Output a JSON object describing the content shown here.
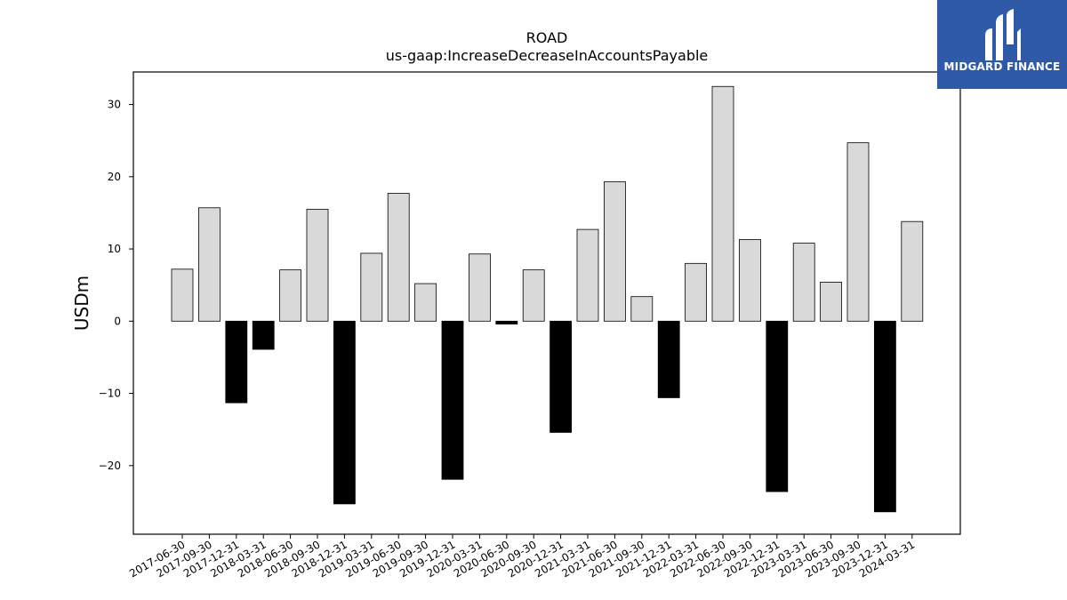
{
  "chart_data": {
    "type": "bar",
    "title": "ROAD",
    "subtitle": "us-gaap:IncreaseDecreaseInAccountsPayable",
    "xlabel": "",
    "ylabel": "USDm",
    "ylim": [
      -29.5,
      34.5
    ],
    "yticks": [
      -20,
      -10,
      0,
      10,
      20,
      30
    ],
    "grid": false,
    "categories": [
      "2017-06-30",
      "2017-09-30",
      "2017-12-31",
      "2018-03-31",
      "2018-06-30",
      "2018-09-30",
      "2018-12-31",
      "2019-03-31",
      "2019-06-30",
      "2019-09-30",
      "2019-12-31",
      "2020-03-31",
      "2020-06-30",
      "2020-09-30",
      "2020-12-31",
      "2021-03-31",
      "2021-06-30",
      "2021-09-30",
      "2021-12-31",
      "2022-03-31",
      "2022-06-30",
      "2022-09-30",
      "2022-12-31",
      "2023-03-31",
      "2023-06-30",
      "2023-09-30",
      "2023-12-31",
      "2024-03-31"
    ],
    "values": [
      7.2,
      15.7,
      -11.3,
      -3.9,
      7.1,
      15.5,
      -25.3,
      9.4,
      17.7,
      5.2,
      -21.9,
      9.3,
      -0.4,
      7.1,
      -15.4,
      12.7,
      19.3,
      3.4,
      -10.6,
      8.0,
      32.5,
      11.3,
      -23.6,
      10.8,
      5.4,
      24.7,
      -26.4,
      13.8
    ],
    "colors": {
      "positive_fill": "#d9d9d9",
      "negative_fill": "#000000",
      "edge": "#000000"
    }
  },
  "logo": {
    "text": "MIDGARD FINANCE",
    "background": "#2f5aa8"
  }
}
